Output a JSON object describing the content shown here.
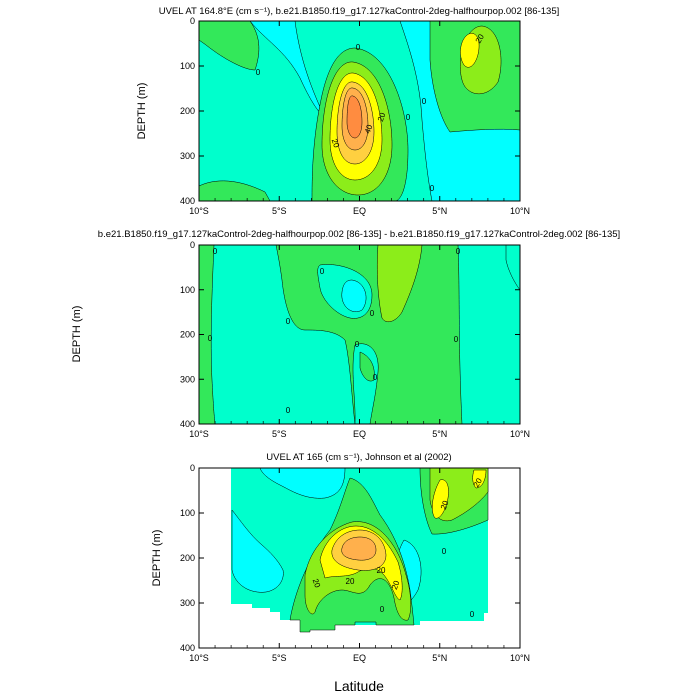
{
  "figure": {
    "xlabel": "Latitude"
  },
  "colors": {
    "fill_0_to_10": "#00ffcc",
    "fill_neg": "#00ffff",
    "fill_10_to_20": "#33e85a",
    "fill_20_to_30": "#8ced1a",
    "fill_30_to_40": "#ffff00",
    "fill_40_to_50": "#ffd040",
    "fill_50_to_60": "#ffb04c",
    "fill_60_plus": "#ff8c40",
    "contour_line": "#000000"
  },
  "chart_data": [
    {
      "type": "heatmap",
      "title": "UVEL AT 164.8°E (cm s⁻¹), b.e21.B1850.f19_g17.127kaControl-2deg-halfhourpop.002 [86-135]",
      "xlabel": "",
      "ylabel": "DEPTH (m)",
      "x_ticks": [
        "10°S",
        "5°S",
        "EQ",
        "5°N",
        "10°N"
      ],
      "y_ticks": [
        "0",
        "100",
        "200",
        "300",
        "400"
      ],
      "xlim": [
        -10,
        10
      ],
      "ylim": [
        400,
        0
      ],
      "features": [
        {
          "kind": "eastward undercurrent core",
          "lat": -0.2,
          "depth": 190,
          "max_value": 60
        },
        {
          "kind": "eastward counter-current",
          "lat": 6.8,
          "depth": 40,
          "max_value": 20
        }
      ],
      "contour_labels": [
        "20",
        "40",
        "20",
        "0",
        "0",
        "0",
        "0",
        "0",
        "20"
      ]
    },
    {
      "type": "heatmap",
      "title": "b.e21.B1850.f19_g17.127kaControl-2deg-halfhourpop.002 [86-135] - b.e21.B1850.f19_g17.127kaControl-2deg.002 [86-135]",
      "xlabel": "",
      "ylabel": "DEPTH (m)",
      "x_ticks": [
        "10°S",
        "5°S",
        "EQ",
        "5°N",
        "10°N"
      ],
      "y_ticks": [
        "0",
        "100",
        "200",
        "300",
        "400"
      ],
      "xlim": [
        -10,
        10
      ],
      "ylim": [
        400,
        0
      ],
      "contour_labels": [
        "0",
        "0",
        "0",
        "0",
        "0",
        "0",
        "0",
        "0",
        "0",
        "0"
      ]
    },
    {
      "type": "heatmap",
      "title": "UVEL AT 165 (cm s⁻¹), Johnson et al (2002)",
      "xlabel": "Latitude",
      "ylabel": "DEPTH (m)",
      "x_ticks": [
        "10°S",
        "5°S",
        "EQ",
        "5°N",
        "10°N"
      ],
      "y_ticks": [
        "0",
        "100",
        "200",
        "300",
        "400"
      ],
      "xlim": [
        -10,
        10
      ],
      "ylim": [
        400,
        0
      ],
      "data_extent": {
        "lat": [
          -8,
          8
        ],
        "depth": [
          0,
          350
        ]
      },
      "features": [
        {
          "kind": "eastward undercurrent core",
          "lat": 0,
          "depth": 190,
          "max_value": 50
        },
        {
          "kind": "eastward counter-current",
          "lat": 7,
          "depth": 50,
          "max_value": 30
        }
      ],
      "contour_labels": [
        "20",
        "20",
        "20",
        "20",
        "20",
        "0",
        "0",
        "0",
        "20"
      ]
    }
  ]
}
